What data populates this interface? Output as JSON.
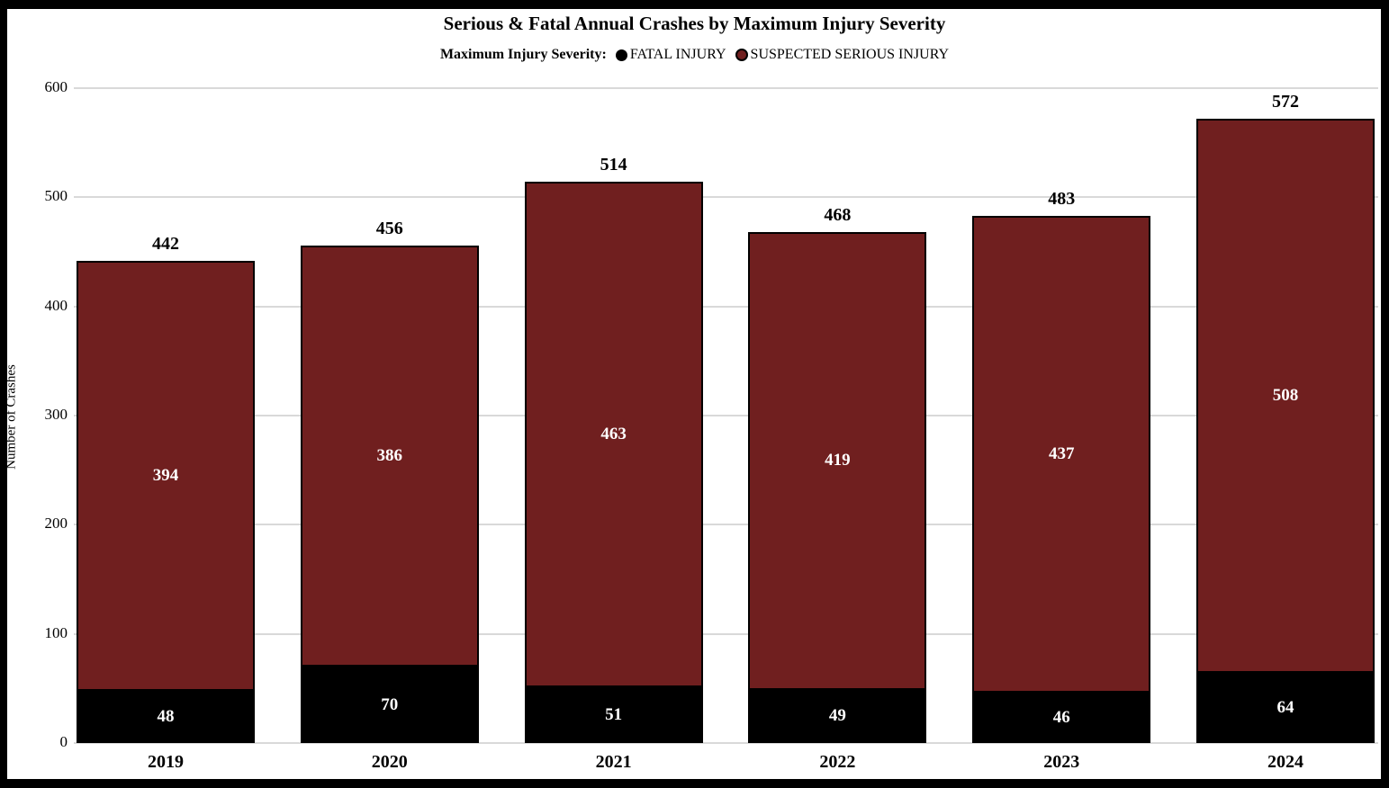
{
  "title": "Serious & Fatal Annual Crashes by Maximum Injury Severity",
  "legend": {
    "label": "Maximum Injury Severity:",
    "items": [
      {
        "name": "FATAL INJURY",
        "color": "#000000"
      },
      {
        "name": "SUSPECTED SERIOUS INJURY",
        "color": "#701f1f"
      }
    ]
  },
  "colors": {
    "fatal": "#000000",
    "serious": "#701f1f",
    "gridline": "#d9d9d9",
    "background": "#ffffff",
    "frame": "#000000",
    "bar_value_text": "#ffffff"
  },
  "chart_data": {
    "type": "bar",
    "stacked": true,
    "title": "Serious & Fatal Annual Crashes by Maximum Injury Severity",
    "xlabel": "",
    "ylabel": "Number of Crashes",
    "ylim": [
      0,
      600
    ],
    "y_ticks": [
      0,
      100,
      200,
      300,
      400,
      500,
      600
    ],
    "grid": true,
    "legend_position": "top",
    "categories": [
      "2019",
      "2020",
      "2021",
      "2022",
      "2023",
      "2024"
    ],
    "series": [
      {
        "name": "FATAL INJURY",
        "color": "#000000",
        "values": [
          48,
          70,
          51,
          49,
          46,
          64
        ]
      },
      {
        "name": "SUSPECTED SERIOUS INJURY",
        "color": "#701f1f",
        "values": [
          394,
          386,
          463,
          419,
          437,
          508
        ]
      }
    ],
    "totals": [
      442,
      456,
      514,
      468,
      483,
      572
    ]
  }
}
